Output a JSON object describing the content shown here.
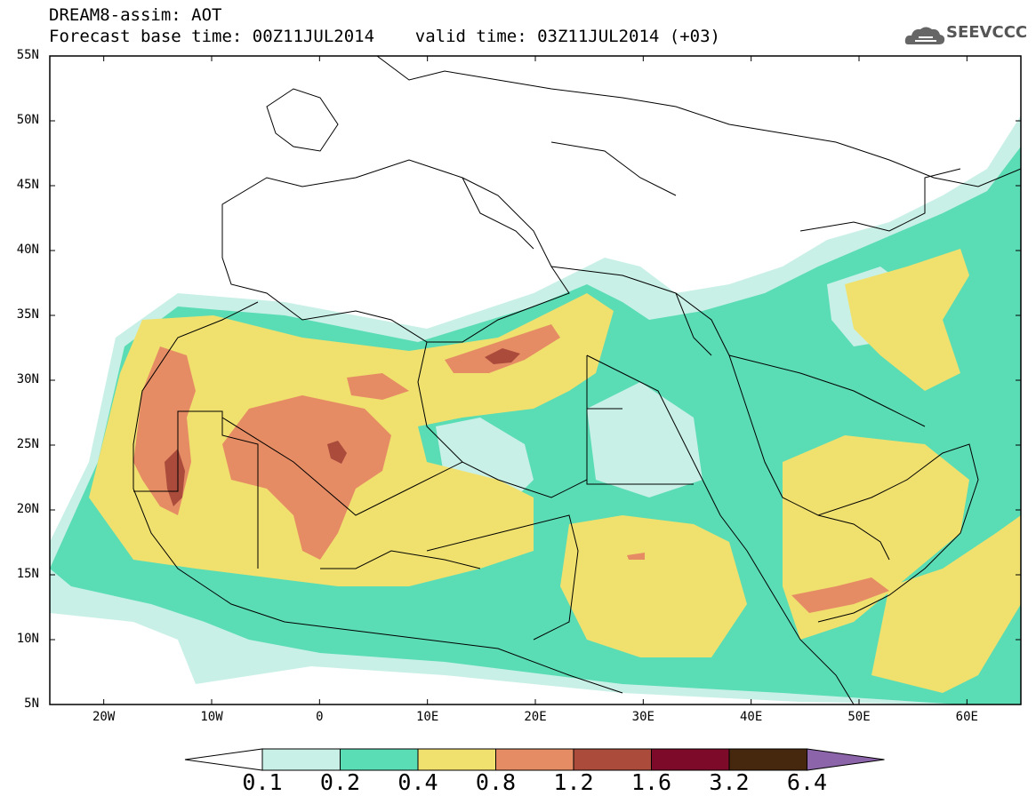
{
  "title": {
    "line1": "DREAM8-assim: AOT",
    "line2": "Forecast base time: 00Z11JUL2014    valid time: 03Z11JUL2014 (+03)"
  },
  "logo": {
    "text": "SEEVCCC",
    "icon": "cloud-icon"
  },
  "map": {
    "lat_labels": [
      "55N",
      "50N",
      "45N",
      "40N",
      "35N",
      "30N",
      "25N",
      "20N",
      "15N",
      "10N",
      "5N"
    ],
    "lon_labels": [
      "20W",
      "10W",
      "0",
      "10E",
      "20E",
      "30E",
      "40E",
      "50E",
      "60E"
    ],
    "lon_range": [
      -25,
      65
    ],
    "lat_range": [
      5,
      55
    ],
    "field": "AOT"
  },
  "colorbar": {
    "levels": [
      "0.1",
      "0.2",
      "0.4",
      "0.8",
      "1.2",
      "1.6",
      "3.2",
      "6.4"
    ],
    "colors": [
      "#ffffff",
      "#c8f0e6",
      "#5adcb4",
      "#f0e16e",
      "#e68c64",
      "#aa4b3c",
      "#7d0a28",
      "#46280f",
      "#8c64aa"
    ]
  }
}
